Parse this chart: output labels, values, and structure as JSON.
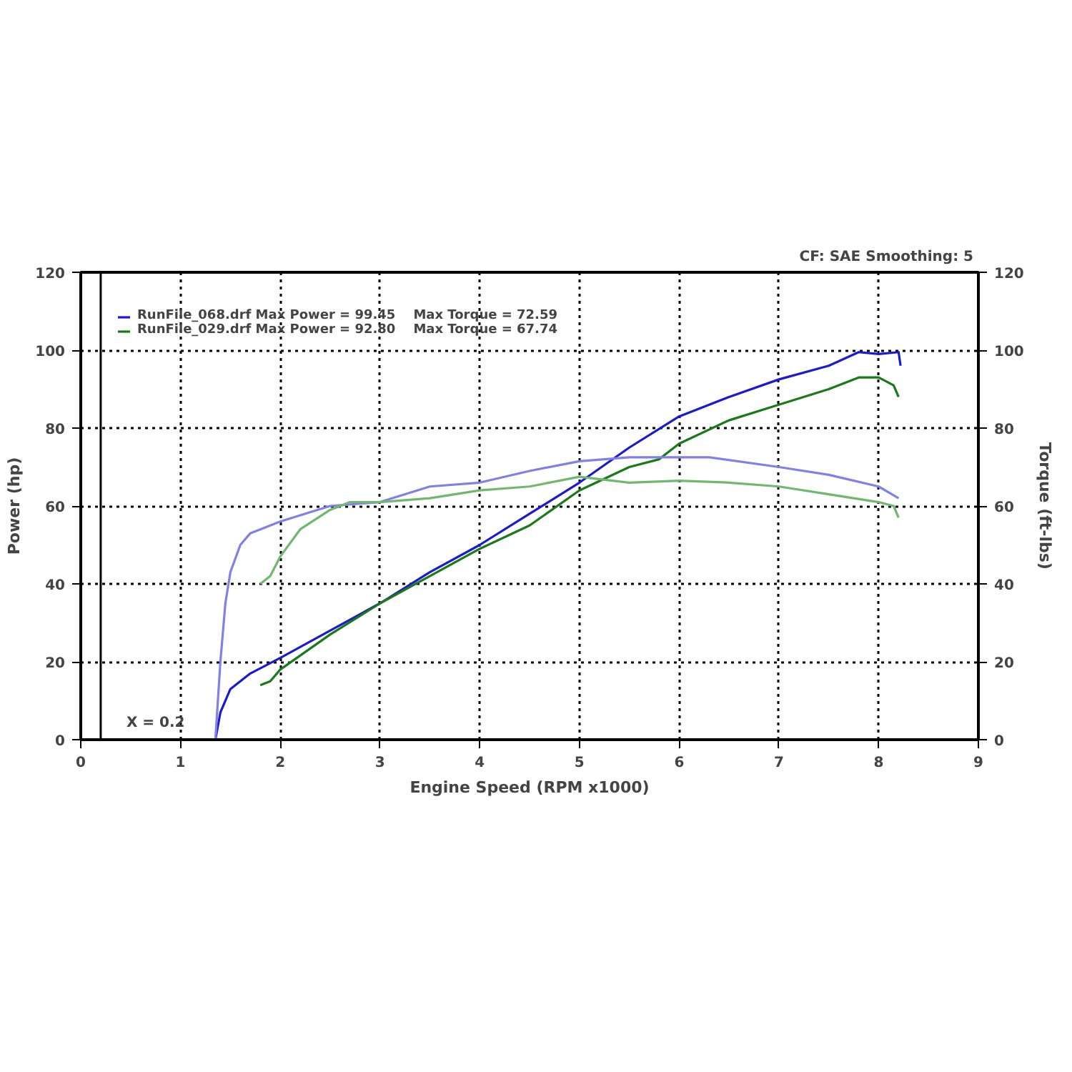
{
  "chart_data": {
    "type": "line",
    "xlabel": "Engine Speed (RPM x1000)",
    "ylabel": "Power (hp)",
    "y2label": "Torque (ft-lbs)",
    "annotations": [
      "CF: SAE  Smoothing: 5"
    ],
    "xlim": [
      0,
      9
    ],
    "xticks": [
      0,
      1,
      2,
      3,
      4,
      5,
      6,
      7,
      8,
      9
    ],
    "ylim": [
      0,
      120
    ],
    "yticks": [
      0,
      20,
      40,
      60,
      80,
      100,
      120
    ],
    "y2lim": [
      0,
      120
    ],
    "y2ticks": [
      0,
      20,
      40,
      60,
      80,
      100,
      120
    ],
    "grid": true,
    "legend": "top left",
    "marker": "none",
    "line_style": "solid",
    "ref_lines": [
      {
        "axis": "x",
        "value": 0.2,
        "label": "X = 0.2",
        "color": "#000000"
      }
    ],
    "series": [
      {
        "name": "RunFile_068.drf Max Power = 99.45    Max Torque = 72.59",
        "color": "#1a1ad0",
        "x": [
          1.35,
          1.4,
          1.5,
          1.7,
          2.0,
          2.5,
          3.0,
          3.5,
          4.0,
          4.5,
          5.0,
          5.5,
          6.0,
          6.5,
          7.0,
          7.5,
          7.8,
          8.0,
          8.2,
          8.22
        ],
        "values": [
          0,
          7,
          13,
          17,
          21,
          28,
          35,
          43,
          50,
          58,
          66,
          75,
          83,
          88,
          92.5,
          96,
          99.5,
          99,
          99.5,
          96
        ]
      },
      {
        "name": "RunFile_029.drf Max Power = 92.80    Max Torque = 67.74",
        "color": "#1a7a1a",
        "x": [
          1.8,
          1.9,
          2.0,
          2.5,
          3.0,
          3.5,
          4.0,
          4.5,
          5.0,
          5.5,
          5.8,
          6.0,
          6.5,
          7.0,
          7.5,
          7.8,
          8.0,
          8.15,
          8.2
        ],
        "values": [
          14,
          15,
          18,
          27,
          35,
          42,
          49,
          55,
          64,
          70,
          72,
          76,
          82,
          86,
          90,
          93,
          93,
          91,
          88
        ]
      },
      {
        "color": "#8080e8",
        "x": [
          1.35,
          1.4,
          1.45,
          1.5,
          1.6,
          1.7,
          2.0,
          2.5,
          3.0,
          3.5,
          4.0,
          4.5,
          5.0,
          5.5,
          6.0,
          6.3,
          7.0,
          7.5,
          8.0,
          8.2
        ],
        "values": [
          0,
          20,
          35,
          43,
          50,
          53,
          56,
          60,
          61,
          65,
          66,
          69,
          71.5,
          72.5,
          72.5,
          72.5,
          70,
          68,
          65,
          62
        ]
      },
      {
        "color": "#70b870",
        "x": [
          1.8,
          1.9,
          2.0,
          2.2,
          2.5,
          2.7,
          3.0,
          3.5,
          4.0,
          4.5,
          5.0,
          5.5,
          6.0,
          6.5,
          7.0,
          7.5,
          8.0,
          8.15,
          8.2
        ],
        "values": [
          40,
          42,
          47,
          54,
          59,
          61,
          61,
          62,
          64,
          65,
          67.5,
          66,
          66.5,
          66,
          65,
          63,
          61,
          60,
          57
        ]
      }
    ]
  }
}
